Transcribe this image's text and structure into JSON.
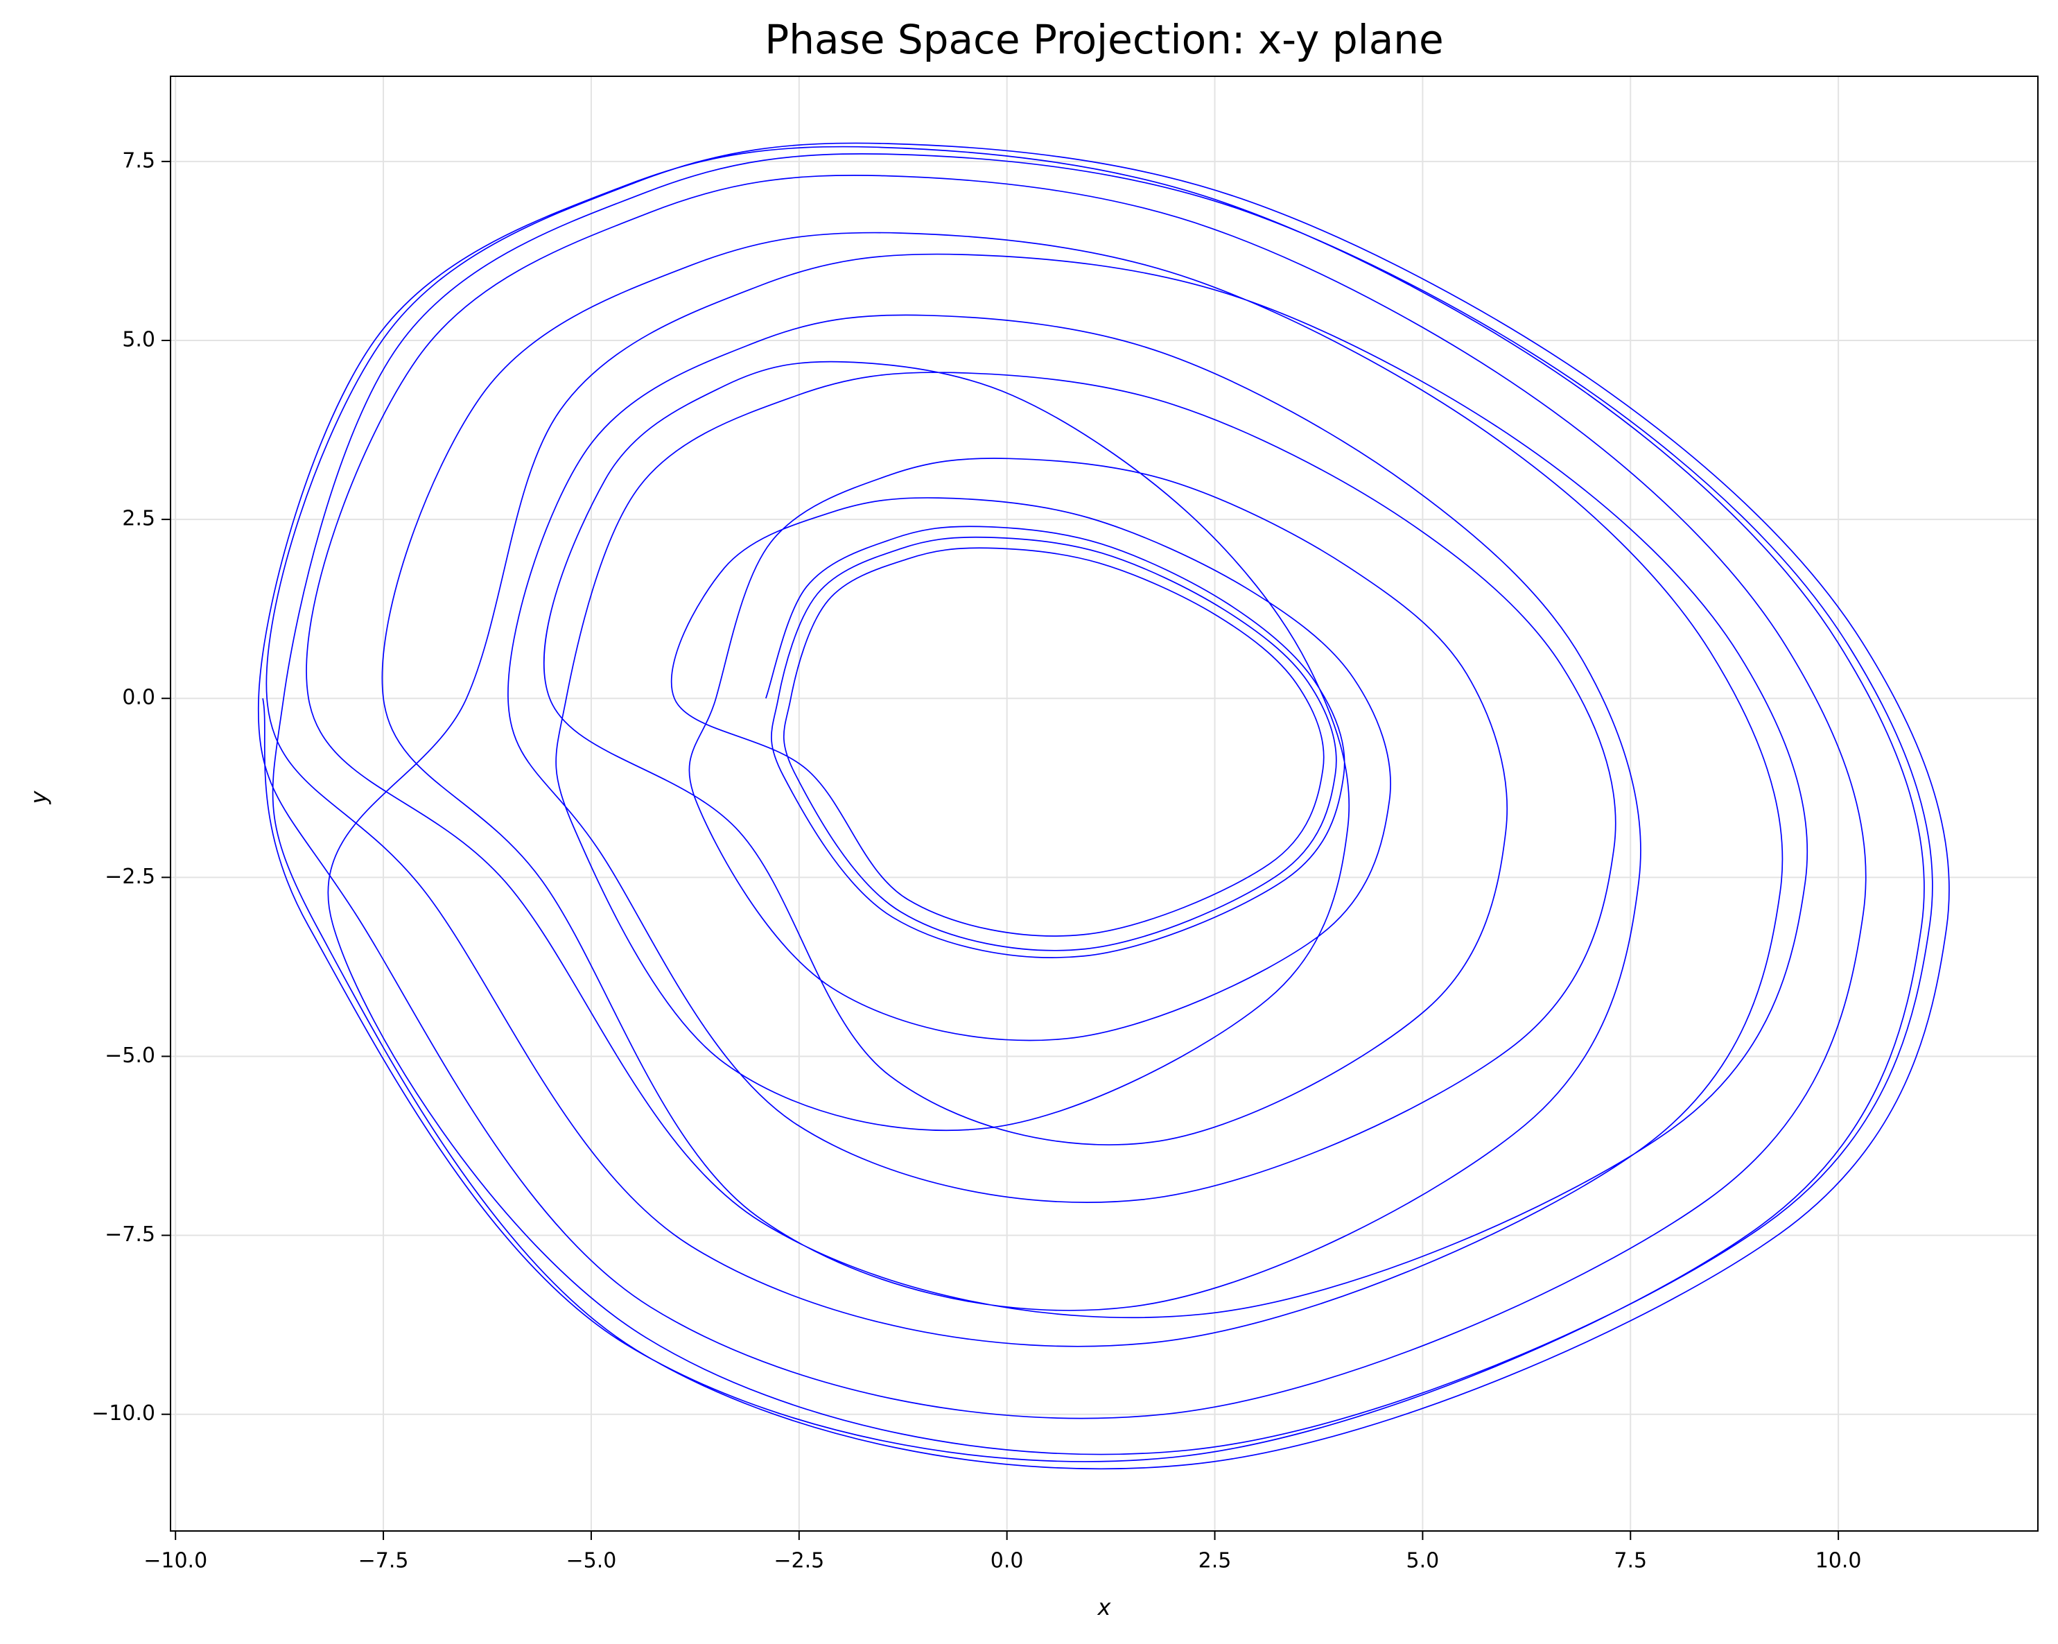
{
  "chart_data": {
    "type": "line",
    "title": "Phase Space Projection: x-y plane",
    "xlabel": "x",
    "ylabel": "y",
    "grid": true,
    "xlim": [
      -10.06,
      12.4
    ],
    "ylim": [
      -11.63,
      8.69
    ],
    "xticks": [
      {
        "value": -10,
        "label": "−10.0"
      },
      {
        "value": -7.5,
        "label": "−7.5"
      },
      {
        "value": -5,
        "label": "−5.0"
      },
      {
        "value": -2.5,
        "label": "−2.5"
      },
      {
        "value": 0,
        "label": "0.0"
      },
      2.5,
      {
        "value": 5,
        "label": "5.0"
      },
      7.5,
      {
        "value": 10,
        "label": "10.0"
      }
    ],
    "yticks": [
      {
        "value": -10,
        "label": "−10.0"
      },
      {
        "value": -7.5,
        "label": "−7.5"
      },
      {
        "value": -5,
        "label": "−5.0"
      },
      {
        "value": -2.5,
        "label": "−2.5"
      },
      {
        "value": 0,
        "label": "0.0"
      },
      2.5,
      {
        "value": 5,
        "label": "5.0"
      },
      7.5
    ],
    "x": [
      -2.9,
      -2.41,
      -1.37,
      -0.33,
      1.13,
      2.66,
      3.7,
      4.05,
      3.36,
      0.92,
      -1.37,
      -2.69,
      -2.75,
      -2.28,
      -1.28,
      -0.27,
      1.14,
      2.61,
      3.62,
      3.95,
      3.28,
      0.94,
      -1.28,
      -2.55,
      -2.6,
      -2.15,
      -1.19,
      -0.23,
      1.11,
      2.52,
      3.48,
      3.8,
      3.16,
      0.92,
      -1.19,
      -2.41,
      -4,
      -3.4,
      -2.11,
      -0.82,
      0.99,
      2.88,
      4.17,
      4.6,
      3.74,
      0.73,
      -2.11,
      -3.74,
      -3.5,
      -2.84,
      -1.41,
      0.02,
      2.01,
      4.1,
      5.53,
      6.0,
      5.05,
      1.73,
      -1.41,
      -3.22,
      -5.5,
      -4.83,
      -3.39,
      -1.95,
      0.07,
      2.18,
      3.62,
      4.1,
      3.14,
      -0.22,
      -3.39,
      -5.21,
      -5.3,
      -4.42,
      -2.53,
      -0.64,
      2.01,
      4.78,
      6.67,
      7.3,
      6.04,
      1.63,
      -2.53,
      -4.92,
      -6,
      -5.05,
      -3.01,
      -0.97,
      1.89,
      4.88,
      6.92,
      7.6,
      6.24,
      1.48,
      -3.01,
      -5.59,
      -7.5,
      -6.32,
      -3.8,
      -1.28,
      2.24,
      5.94,
      8.46,
      9.3,
      7.62,
      1.74,
      -3.8,
      -7.0,
      -8.9,
      -7.49,
      -4.46,
      -1.43,
      2.82,
      7.26,
      10.29,
      11.3,
      9.28,
      2.21,
      -4.46,
      -8.29,
      -8.7,
      -7.31,
      -4.34,
      -1.37,
      2.78,
      7.14,
      10.11,
      11.1,
      9.12,
      2.19,
      -4.34,
      -8.11,
      -6.5,
      -5.37,
      -2.96,
      -0.54,
      2.84,
      6.38,
      8.8,
      9.6,
      7.99,
      2.36,
      -2.96,
      -6.02,
      -8.4,
      -7.09,
      -4.29,
      -1.48,
      2.45,
      6.56,
      9.37,
      10.3,
      8.43,
      1.89,
      -4.29,
      -7.84,
      -9,
      -7.6,
      -4.6,
      -1.6,
      2.6,
      7.0,
      10.0,
      11.0,
      9.0,
      2.0,
      -4.6,
      -8.4,
      -8.95
    ],
    "series": [
      {
        "color": "#0000ff",
        "values": [
          0,
          1.56,
          2.23,
          2.4,
          2.16,
          1.32,
          0.24,
          -1.08,
          -2.52,
          -3.6,
          -3.06,
          -1.08,
          0,
          1.46,
          2.09,
          2.25,
          2.03,
          1.24,
          0.23,
          -1.05,
          -2.45,
          -3.5,
          -2.98,
          -1.05,
          0,
          1.37,
          1.95,
          2.1,
          1.89,
          1.16,
          0.21,
          -0.99,
          -2.31,
          -3.3,
          -2.81,
          -0.99,
          0,
          1.82,
          2.6,
          2.8,
          2.52,
          1.54,
          0.28,
          -1.43,
          -3.33,
          -4.75,
          -4.04,
          -1.43,
          0,
          2.18,
          3.12,
          3.35,
          3.02,
          1.84,
          0.34,
          -1.86,
          -4.34,
          -6.2,
          -5.27,
          -1.86,
          0,
          3.06,
          4.37,
          4.7,
          4.23,
          2.59,
          0.47,
          -1.8,
          -4.2,
          -6.0,
          -5.1,
          -1.8,
          0,
          2.96,
          4.23,
          4.55,
          4.1,
          2.5,
          0.46,
          -2.1,
          -4.9,
          -7.0,
          -5.95,
          -2.1,
          0,
          3.48,
          4.98,
          5.35,
          4.82,
          2.94,
          0.54,
          -2.55,
          -5.95,
          -8.5,
          -7.23,
          -2.55,
          0,
          4.23,
          6.05,
          6.5,
          5.85,
          3.58,
          0.65,
          -2.7,
          -6.3,
          -9.0,
          -7.65,
          -2.7,
          0,
          5.04,
          7.21,
          7.75,
          6.98,
          4.26,
          0.78,
          -3.21,
          -7.49,
          -10.7,
          -9.1,
          -3.21,
          0,
          4.94,
          7.07,
          7.6,
          6.84,
          4.18,
          0.76,
          -3.15,
          -7.35,
          -10.5,
          -8.93,
          -3.15,
          0,
          4.03,
          5.77,
          6.2,
          5.58,
          3.41,
          0.62,
          -2.58,
          -6.02,
          -8.6,
          -7.31,
          -2.58,
          0,
          4.75,
          6.79,
          7.3,
          6.57,
          4.02,
          0.73,
          -3.0,
          -7.0,
          -10.0,
          -8.5,
          -3.0,
          0,
          5.01,
          7.16,
          7.7,
          6.93,
          4.24,
          0.77,
          -3.18,
          -7.42,
          -10.6,
          -9.01,
          -3.18,
          0
        ]
      }
    ]
  }
}
